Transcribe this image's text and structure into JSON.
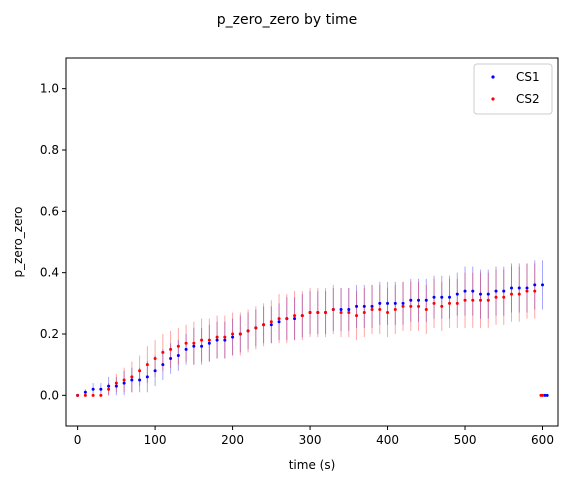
{
  "chart_data": {
    "type": "scatter",
    "title": "p_zero_zero by time",
    "xlabel": "time (s)",
    "ylabel": "p_zero_zero",
    "xlim": [
      -15,
      620
    ],
    "ylim": [
      -0.1,
      1.1
    ],
    "xticks": [
      "0",
      "100",
      "200",
      "300",
      "400",
      "500",
      "600"
    ],
    "xtick_values": [
      0,
      100,
      200,
      300,
      400,
      500,
      600
    ],
    "yticks": [
      "0.0",
      "0.2",
      "0.4",
      "0.6",
      "0.8",
      "1.0"
    ],
    "ytick_values": [
      0.0,
      0.2,
      0.4,
      0.6,
      0.8,
      1.0
    ],
    "grid": false,
    "legend_position": "top-right",
    "error_bars": true,
    "series": [
      {
        "name": "CS1",
        "color": "#0000ff",
        "x": [
          0,
          10,
          20,
          30,
          40,
          50,
          60,
          70,
          80,
          90,
          100,
          110,
          120,
          130,
          140,
          150,
          160,
          170,
          180,
          190,
          200,
          210,
          220,
          230,
          240,
          250,
          260,
          270,
          280,
          290,
          300,
          310,
          320,
          330,
          340,
          350,
          360,
          370,
          380,
          390,
          400,
          410,
          420,
          430,
          440,
          450,
          460,
          470,
          480,
          490,
          500,
          510,
          520,
          530,
          540,
          550,
          560,
          570,
          580,
          590,
          600,
          603,
          606
        ],
        "y": [
          0.0,
          0.01,
          0.02,
          0.02,
          0.03,
          0.03,
          0.04,
          0.05,
          0.05,
          0.06,
          0.08,
          0.1,
          0.12,
          0.13,
          0.15,
          0.16,
          0.16,
          0.17,
          0.18,
          0.18,
          0.19,
          0.2,
          0.21,
          0.22,
          0.23,
          0.23,
          0.24,
          0.25,
          0.25,
          0.26,
          0.27,
          0.27,
          0.27,
          0.28,
          0.28,
          0.28,
          0.29,
          0.29,
          0.29,
          0.3,
          0.3,
          0.3,
          0.3,
          0.31,
          0.31,
          0.31,
          0.32,
          0.32,
          0.32,
          0.33,
          0.34,
          0.34,
          0.33,
          0.33,
          0.34,
          0.34,
          0.35,
          0.35,
          0.35,
          0.36,
          0.36,
          0.0,
          0.0
        ],
        "err": [
          0.0,
          0.01,
          0.02,
          0.02,
          0.03,
          0.03,
          0.04,
          0.04,
          0.04,
          0.05,
          0.05,
          0.05,
          0.05,
          0.05,
          0.05,
          0.06,
          0.06,
          0.06,
          0.06,
          0.06,
          0.06,
          0.06,
          0.06,
          0.06,
          0.06,
          0.06,
          0.06,
          0.07,
          0.07,
          0.07,
          0.07,
          0.07,
          0.07,
          0.07,
          0.07,
          0.07,
          0.07,
          0.07,
          0.07,
          0.07,
          0.07,
          0.07,
          0.07,
          0.07,
          0.07,
          0.07,
          0.07,
          0.07,
          0.07,
          0.07,
          0.08,
          0.08,
          0.08,
          0.08,
          0.08,
          0.08,
          0.08,
          0.08,
          0.08,
          0.08,
          0.08,
          0.0,
          0.0
        ]
      },
      {
        "name": "CS2",
        "color": "#ff0000",
        "x": [
          0,
          10,
          20,
          30,
          40,
          50,
          60,
          70,
          80,
          90,
          100,
          110,
          120,
          130,
          140,
          150,
          160,
          170,
          180,
          190,
          200,
          210,
          220,
          230,
          240,
          250,
          260,
          270,
          280,
          290,
          300,
          310,
          320,
          330,
          340,
          350,
          360,
          370,
          380,
          390,
          400,
          410,
          420,
          430,
          440,
          450,
          460,
          470,
          480,
          490,
          500,
          510,
          520,
          530,
          540,
          550,
          560,
          570,
          580,
          590,
          598,
          600
        ],
        "y": [
          0.0,
          0.0,
          0.0,
          0.0,
          0.02,
          0.04,
          0.05,
          0.06,
          0.08,
          0.1,
          0.12,
          0.14,
          0.15,
          0.16,
          0.17,
          0.17,
          0.18,
          0.18,
          0.19,
          0.19,
          0.2,
          0.2,
          0.21,
          0.22,
          0.23,
          0.24,
          0.25,
          0.25,
          0.26,
          0.26,
          0.27,
          0.27,
          0.27,
          0.28,
          0.27,
          0.27,
          0.26,
          0.27,
          0.28,
          0.28,
          0.27,
          0.28,
          0.29,
          0.29,
          0.29,
          0.28,
          0.3,
          0.29,
          0.3,
          0.3,
          0.31,
          0.31,
          0.31,
          0.31,
          0.32,
          0.32,
          0.33,
          0.33,
          0.34,
          0.34,
          0.0,
          0.0
        ],
        "err": [
          0.0,
          0.0,
          0.0,
          0.0,
          0.02,
          0.03,
          0.04,
          0.05,
          0.05,
          0.06,
          0.06,
          0.06,
          0.06,
          0.06,
          0.06,
          0.07,
          0.07,
          0.07,
          0.07,
          0.07,
          0.07,
          0.07,
          0.07,
          0.07,
          0.07,
          0.07,
          0.08,
          0.08,
          0.08,
          0.08,
          0.08,
          0.08,
          0.08,
          0.08,
          0.08,
          0.08,
          0.08,
          0.08,
          0.08,
          0.08,
          0.08,
          0.08,
          0.08,
          0.08,
          0.08,
          0.08,
          0.08,
          0.08,
          0.08,
          0.08,
          0.09,
          0.09,
          0.09,
          0.09,
          0.09,
          0.09,
          0.09,
          0.09,
          0.09,
          0.09,
          0.0,
          0.0
        ]
      }
    ]
  }
}
